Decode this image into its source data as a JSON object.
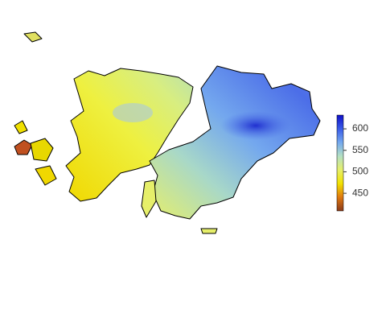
{
  "chart_data": {
    "type": "raster-map",
    "colorbar": {
      "lim": [
        409,
        632
      ],
      "ticks": [
        450,
        500,
        550,
        600
      ],
      "colors": [
        "#8b3a1a",
        "#e0780f",
        "#f2e200",
        "#e6ef6a",
        "#b4e0c4",
        "#74a8ee",
        "#3a5ce8",
        "#1010c8"
      ]
    }
  }
}
